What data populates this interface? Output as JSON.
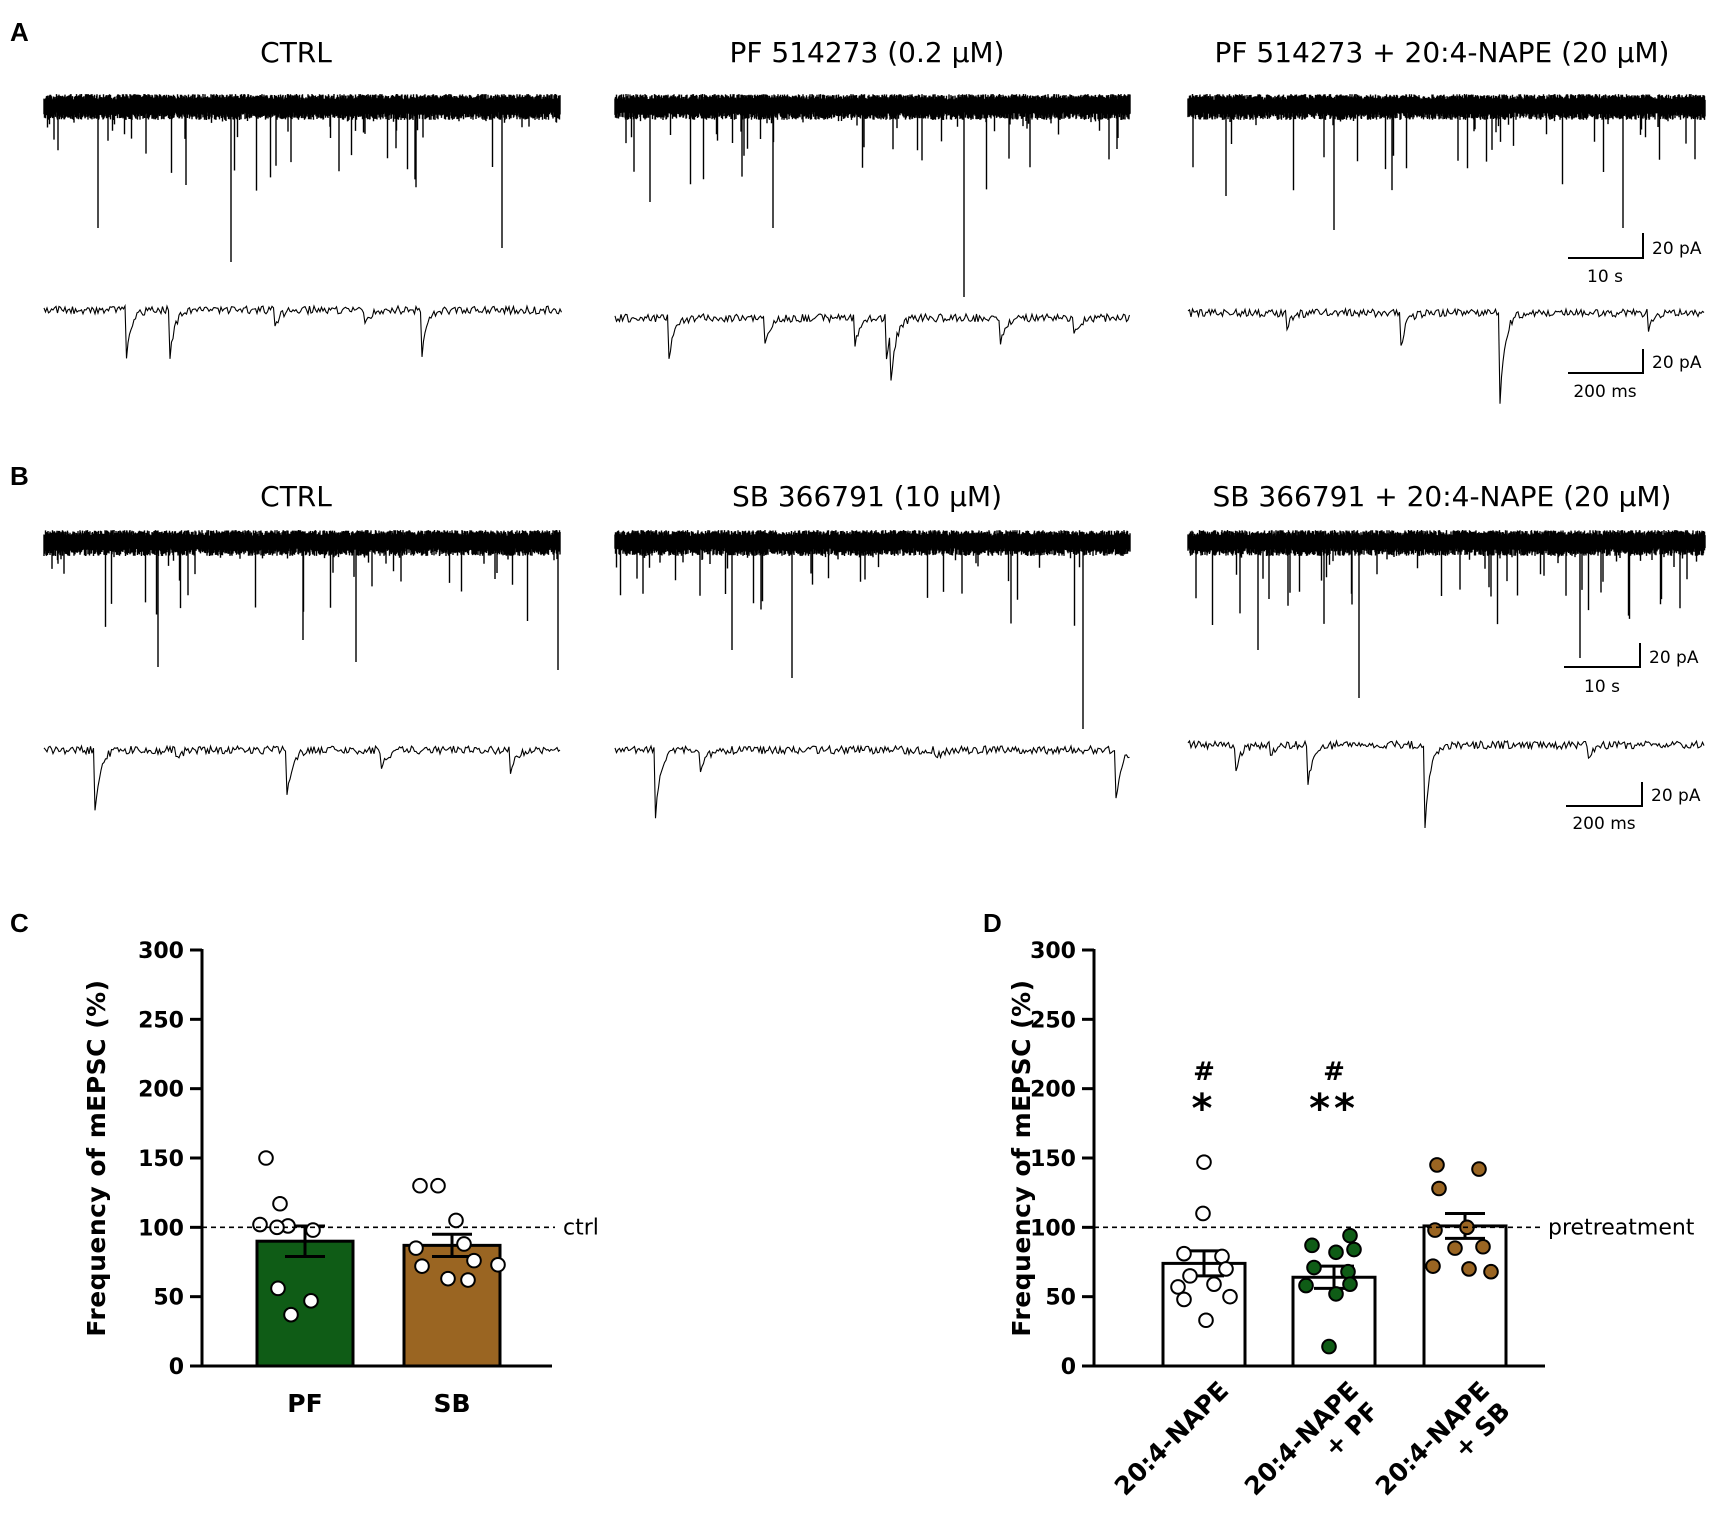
{
  "panels": {
    "A": {
      "letter": "A",
      "conditions": [
        "CTRL",
        "PF 514273 (0.2 µM)",
        "PF 514273 + 20:4-NAPE (20 µM)"
      ],
      "scale_slow": {
        "amp": "20 pA",
        "time": "10 s"
      },
      "scale_fast": {
        "amp": "20 pA",
        "time": "200 ms"
      }
    },
    "B": {
      "letter": "B",
      "conditions": [
        "CTRL",
        "SB 366791 (10 µM)",
        "SB 366791 + 20:4-NAPE (20 µM)"
      ],
      "scale_slow": {
        "amp": "20 pA",
        "time": "10 s"
      },
      "scale_fast": {
        "amp": "20 pA",
        "time": "200 ms"
      }
    },
    "C": {
      "letter": "C"
    },
    "D": {
      "letter": "D"
    }
  },
  "colors": {
    "pf": "#0f5c16",
    "sb": "#9a6522",
    "white_bar": "#ffffff",
    "axis": "#000000"
  },
  "chart_data": [
    {
      "id": "C",
      "type": "bar",
      "ylabel": "Frequency of mEPSC (%)",
      "ylim": [
        0,
        300
      ],
      "yticks": [
        0,
        50,
        100,
        150,
        200,
        250,
        300
      ],
      "reference": {
        "value": 100,
        "label": "ctrl",
        "style": "dashed"
      },
      "categories": [
        "PF",
        "SB"
      ],
      "bar_colors": [
        "#0f5c16",
        "#9a6522"
      ],
      "values": [
        90,
        87
      ],
      "sem": [
        11,
        8
      ],
      "points": [
        [
          150,
          117,
          102,
          101,
          100,
          98,
          56,
          47,
          37
        ],
        [
          130,
          130,
          105,
          88,
          85,
          76,
          73,
          72,
          63,
          62
        ]
      ],
      "point_colors": [
        "#ffffff",
        "#ffffff"
      ],
      "annotations": []
    },
    {
      "id": "D",
      "type": "bar",
      "ylabel": "Frequency of mEPSC (%)",
      "ylim": [
        0,
        300
      ],
      "yticks": [
        0,
        50,
        100,
        150,
        200,
        250,
        300
      ],
      "reference": {
        "value": 100,
        "label": "pretreatment",
        "style": "dashed"
      },
      "categories": [
        "20:4-NAPE",
        "20:4-NAPE\n+ PF",
        "20:4-NAPE\n+ SB"
      ],
      "bar_colors": [
        "#ffffff",
        "#ffffff",
        "#ffffff"
      ],
      "values": [
        74,
        64,
        101
      ],
      "sem": [
        9,
        8,
        9
      ],
      "points": [
        [
          147,
          110,
          81,
          79,
          70,
          65,
          59,
          57,
          50,
          48,
          33
        ],
        [
          94,
          87,
          84,
          82,
          71,
          68,
          59,
          58,
          52,
          14
        ],
        [
          145,
          142,
          128,
          100,
          98,
          86,
          85,
          72,
          70,
          68
        ]
      ],
      "point_colors": [
        "#ffffff",
        "#0f5c16",
        "#9a6522"
      ],
      "annotations": [
        {
          "category": 0,
          "hash": "#",
          "stars": "*"
        },
        {
          "category": 1,
          "hash": "#",
          "stars": "**"
        }
      ]
    }
  ]
}
